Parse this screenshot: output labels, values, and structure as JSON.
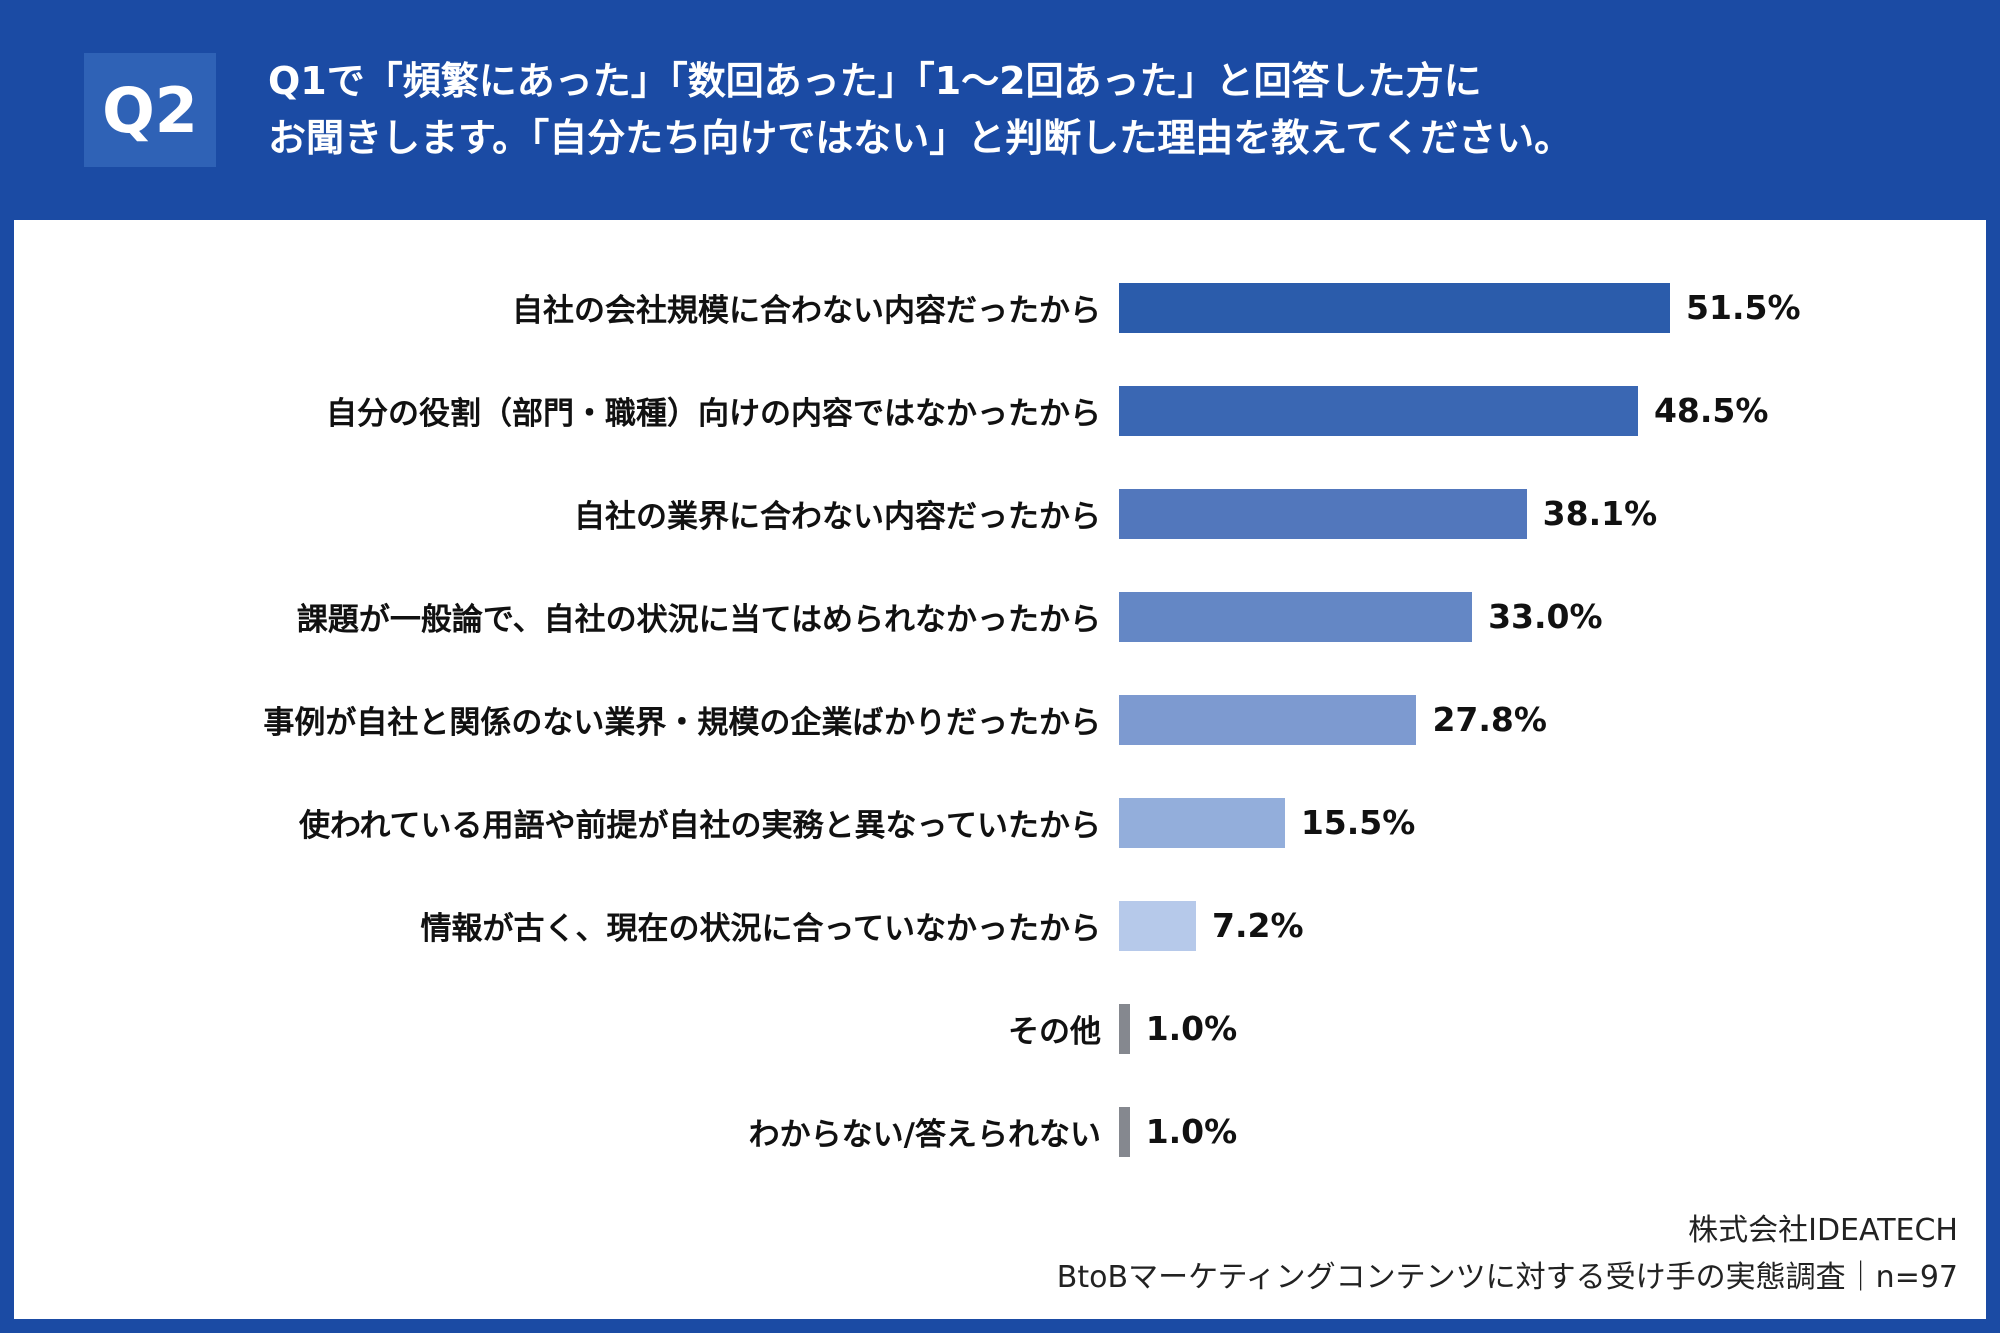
{
  "header": {
    "badge": "Q2",
    "title_line1": "Q1で「頻繁にあった」「数回あった」「1〜2回あった」と回答した方に",
    "title_line2": "お聞きします。「自分たち向けではない」と判断した理由を教えてください。"
  },
  "chart_data": {
    "type": "bar",
    "orientation": "horizontal",
    "title": "",
    "xlabel": "",
    "ylabel": "",
    "xlim": [
      0,
      60
    ],
    "grid": false,
    "legend": "none",
    "categories": [
      "自社の会社規模に合わない内容だったから",
      "自分の役割（部門・職種）向けの内容ではなかったから",
      "自社の業界に合わない内容だったから",
      "課題が一般論で、自社の状況に当てはめられなかったから",
      "事例が自社と関係のない業界・規模の企業ばかりだったから",
      "使われている用語や前提が自社の実務と異なっていたから",
      "情報が古く、現在の状況に合っていなかったから",
      "その他",
      "わからない/答えられない"
    ],
    "values": [
      51.5,
      48.5,
      38.1,
      33.0,
      27.8,
      15.5,
      7.2,
      1.0,
      1.0
    ],
    "value_labels": [
      "51.5%",
      "48.5%",
      "38.1%",
      "33.0%",
      "27.8%",
      "15.5%",
      "7.2%",
      "1.0%",
      "1.0%"
    ],
    "bar_colors": [
      "#2b5cab",
      "#3a67b3",
      "#5277bc",
      "#6487c5",
      "#7d9ad0",
      "#93aedb",
      "#b6c9ea",
      "#85888f",
      "#85888f"
    ]
  },
  "footer": {
    "company": "株式会社IDEATECH",
    "survey": "BtoBマーケティングコンテンツに対する受け手の実態調査｜n=97"
  },
  "colors": {
    "background": "#1b4ba4",
    "badge": "#2f62b6",
    "panel": "#ffffff",
    "text_on_dark": "#ffffff",
    "text_on_light": "#111111"
  }
}
